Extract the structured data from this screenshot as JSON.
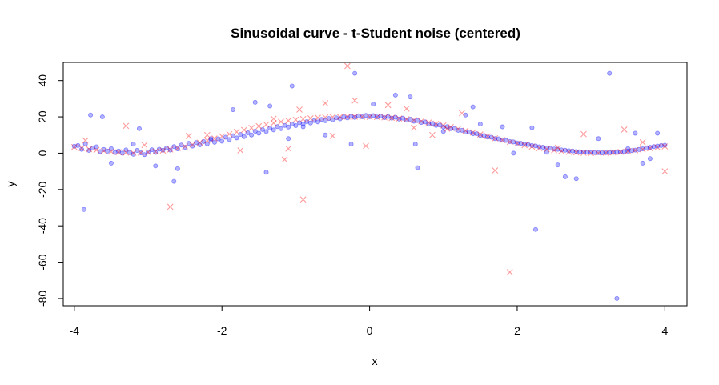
{
  "chart_data": {
    "type": "scatter",
    "title": "Sinusoidal curve - t-Student noise (centered)",
    "xlabel": "x",
    "ylabel": "y",
    "xlim": [
      -4.15,
      4.3
    ],
    "ylim": [
      -84,
      50
    ],
    "x_ticks": [
      -4,
      -2,
      0,
      2,
      4
    ],
    "x_tick_labels": [
      "-4",
      "-2",
      "0",
      "2",
      "4"
    ],
    "y_ticks": [
      -80,
      -60,
      -40,
      -20,
      0,
      20,
      40
    ],
    "y_tick_labels": [
      "-80",
      "-60",
      "-40",
      "-20",
      "0",
      "20",
      "40"
    ],
    "grid": false,
    "legend": "none",
    "colors": {
      "points": "#0000ff",
      "points_alpha": 0.3,
      "fit_markers": "#ff0000",
      "fit_markers_alpha": 0.4
    },
    "series": [
      {
        "marker": "circle",
        "color": "#0000ff",
        "points": [
          [
            -4.0,
            3.8
          ],
          [
            -3.95,
            4.2
          ],
          [
            -3.9,
            2.1
          ],
          [
            -3.85,
            5.0
          ],
          [
            -3.8,
            1.5
          ],
          [
            -3.75,
            2.8
          ],
          [
            -3.7,
            3.5
          ],
          [
            -3.65,
            0.9
          ],
          [
            -3.6,
            2.0
          ],
          [
            -3.55,
            1.1
          ],
          [
            -3.5,
            2.5
          ],
          [
            -3.45,
            0.4
          ],
          [
            -3.4,
            1.2
          ],
          [
            -3.35,
            0.0
          ],
          [
            -3.3,
            1.8
          ],
          [
            -3.25,
            0.3
          ],
          [
            -3.2,
            -0.6
          ],
          [
            -3.15,
            1.5
          ],
          [
            -3.1,
            0.2
          ],
          [
            -3.05,
            -0.8
          ],
          [
            -3.0,
            0.6
          ],
          [
            -2.95,
            1.9
          ],
          [
            -2.9,
            0.4
          ],
          [
            -2.85,
            2.2
          ],
          [
            -2.8,
            1.6
          ],
          [
            -2.75,
            2.9
          ],
          [
            -2.7,
            1.7
          ],
          [
            -2.65,
            3.6
          ],
          [
            -2.6,
            2.4
          ],
          [
            -2.55,
            4.5
          ],
          [
            -2.5,
            3.2
          ],
          [
            -2.45,
            5.4
          ],
          [
            -2.4,
            3.9
          ],
          [
            -2.35,
            5.8
          ],
          [
            -2.3,
            4.6
          ],
          [
            -2.25,
            6.4
          ],
          [
            -2.2,
            5.1
          ],
          [
            -2.15,
            7.2
          ],
          [
            -2.1,
            6.0
          ],
          [
            -2.05,
            7.9
          ],
          [
            -2.0,
            6.6
          ],
          [
            -1.95,
            8.8
          ],
          [
            -1.9,
            7.5
          ],
          [
            -1.85,
            9.6
          ],
          [
            -1.8,
            8.4
          ],
          [
            -1.75,
            10.3
          ],
          [
            -1.7,
            9.1
          ],
          [
            -1.65,
            11.2
          ],
          [
            -1.6,
            10.0
          ],
          [
            -1.55,
            12.1
          ],
          [
            -1.5,
            11.0
          ],
          [
            -1.45,
            13.0
          ],
          [
            -1.4,
            11.9
          ],
          [
            -1.35,
            13.8
          ],
          [
            -1.3,
            12.8
          ],
          [
            -1.25,
            14.6
          ],
          [
            -1.2,
            13.5
          ],
          [
            -1.15,
            15.3
          ],
          [
            -1.1,
            14.4
          ],
          [
            -1.05,
            16.0
          ],
          [
            -1.0,
            15.2
          ],
          [
            -0.95,
            16.8
          ],
          [
            -0.9,
            16.0
          ],
          [
            -0.85,
            17.4
          ],
          [
            -0.8,
            16.6
          ],
          [
            -0.75,
            18.0
          ],
          [
            -0.7,
            17.2
          ],
          [
            -0.65,
            18.6
          ],
          [
            -0.6,
            17.9
          ],
          [
            -0.55,
            19.1
          ],
          [
            -0.5,
            18.4
          ],
          [
            -0.45,
            19.5
          ],
          [
            -0.4,
            18.9
          ],
          [
            -0.35,
            20.0
          ],
          [
            -0.3,
            19.4
          ],
          [
            -0.25,
            20.3
          ],
          [
            -0.2,
            19.7
          ],
          [
            -0.15,
            20.6
          ],
          [
            -0.1,
            20.0
          ],
          [
            -0.05,
            20.8
          ],
          [
            0.0,
            20.1
          ],
          [
            0.05,
            20.7
          ],
          [
            0.1,
            19.9
          ],
          [
            0.15,
            20.5
          ],
          [
            0.2,
            19.6
          ],
          [
            0.25,
            20.2
          ],
          [
            0.3,
            19.3
          ],
          [
            0.35,
            19.8
          ],
          [
            0.4,
            18.8
          ],
          [
            0.45,
            19.3
          ],
          [
            0.5,
            18.2
          ],
          [
            0.55,
            18.7
          ],
          [
            0.6,
            17.6
          ],
          [
            0.65,
            18.0
          ],
          [
            0.7,
            16.9
          ],
          [
            0.75,
            17.2
          ],
          [
            0.8,
            16.1
          ],
          [
            0.85,
            16.4
          ],
          [
            0.9,
            15.3
          ],
          [
            0.95,
            15.5
          ],
          [
            1.0,
            14.4
          ],
          [
            1.05,
            14.6
          ],
          [
            1.1,
            13.5
          ],
          [
            1.15,
            13.6
          ],
          [
            1.2,
            12.6
          ],
          [
            1.25,
            12.6
          ],
          [
            1.3,
            11.6
          ],
          [
            1.35,
            11.6
          ],
          [
            1.4,
            10.7
          ],
          [
            1.45,
            10.7
          ],
          [
            1.5,
            9.8
          ],
          [
            1.55,
            9.7
          ],
          [
            1.6,
            8.9
          ],
          [
            1.65,
            8.8
          ],
          [
            1.7,
            8.0
          ],
          [
            1.75,
            7.9
          ],
          [
            1.8,
            7.2
          ],
          [
            1.85,
            7.0
          ],
          [
            1.9,
            6.4
          ],
          [
            1.95,
            6.2
          ],
          [
            2.0,
            5.6
          ],
          [
            2.05,
            5.4
          ],
          [
            2.1,
            4.9
          ],
          [
            2.15,
            4.7
          ],
          [
            2.2,
            4.2
          ],
          [
            2.25,
            4.0
          ],
          [
            2.3,
            3.5
          ],
          [
            2.35,
            3.3
          ],
          [
            2.4,
            2.9
          ],
          [
            2.45,
            2.7
          ],
          [
            2.5,
            2.3
          ],
          [
            2.55,
            2.1
          ],
          [
            2.6,
            1.8
          ],
          [
            2.65,
            1.6
          ],
          [
            2.7,
            1.3
          ],
          [
            2.75,
            1.2
          ],
          [
            2.8,
            0.9
          ],
          [
            2.85,
            0.8
          ],
          [
            2.9,
            0.6
          ],
          [
            2.95,
            0.5
          ],
          [
            3.0,
            0.4
          ],
          [
            3.05,
            0.3
          ],
          [
            3.1,
            0.3
          ],
          [
            3.15,
            0.2
          ],
          [
            3.2,
            0.3
          ],
          [
            3.25,
            0.3
          ],
          [
            3.3,
            0.4
          ],
          [
            3.35,
            0.5
          ],
          [
            3.4,
            0.7
          ],
          [
            3.45,
            0.9
          ],
          [
            3.5,
            1.1
          ],
          [
            3.55,
            1.4
          ],
          [
            3.6,
            1.7
          ],
          [
            3.65,
            2.0
          ],
          [
            3.7,
            2.4
          ],
          [
            3.75,
            2.8
          ],
          [
            3.8,
            3.2
          ],
          [
            3.85,
            3.6
          ],
          [
            3.9,
            3.9
          ],
          [
            3.95,
            4.2
          ],
          [
            4.0,
            4.4
          ],
          [
            -3.62,
            20.0
          ],
          [
            -3.87,
            -31.0
          ],
          [
            -3.78,
            21.0
          ],
          [
            -3.12,
            13.5
          ],
          [
            -2.65,
            -15.5
          ],
          [
            -2.9,
            -7.0
          ],
          [
            -2.6,
            -8.5
          ],
          [
            -1.85,
            24.0
          ],
          [
            -1.55,
            28.0
          ],
          [
            -1.35,
            26.0
          ],
          [
            -1.05,
            37.0
          ],
          [
            -1.1,
            8.0
          ],
          [
            -1.4,
            -10.5
          ],
          [
            -0.2,
            44.0
          ],
          [
            -0.6,
            10.0
          ],
          [
            -0.25,
            5.0
          ],
          [
            0.05,
            27.0
          ],
          [
            0.35,
            32.0
          ],
          [
            0.55,
            31.0
          ],
          [
            0.62,
            5.0
          ],
          [
            0.65,
            -8.0
          ],
          [
            1.4,
            25.5
          ],
          [
            1.3,
            21.0
          ],
          [
            1.5,
            16.0
          ],
          [
            1.8,
            14.5
          ],
          [
            2.2,
            14.0
          ],
          [
            2.25,
            -42.0
          ],
          [
            2.55,
            -6.5
          ],
          [
            2.65,
            -13.0
          ],
          [
            2.8,
            -14.0
          ],
          [
            3.1,
            8.0
          ],
          [
            3.25,
            44.0
          ],
          [
            3.35,
            -80.0
          ],
          [
            3.6,
            11.0
          ],
          [
            3.7,
            -5.5
          ],
          [
            3.8,
            -3.0
          ],
          [
            3.9,
            11.0
          ],
          [
            -3.5,
            -5.5
          ],
          [
            -2.15,
            8.0
          ],
          [
            -0.9,
            14.5
          ],
          [
            1.0,
            12.0
          ],
          [
            1.95,
            0.0
          ],
          [
            2.4,
            0.5
          ],
          [
            3.5,
            2.5
          ],
          [
            -3.2,
            5.0
          ]
        ]
      },
      {
        "marker": "cross",
        "color": "#ff0000",
        "points": [
          [
            -4.0,
            3.4
          ],
          [
            -3.9,
            2.8
          ],
          [
            -3.8,
            2.2
          ],
          [
            -3.7,
            1.7
          ],
          [
            -3.6,
            1.2
          ],
          [
            -3.5,
            0.8
          ],
          [
            -3.4,
            0.5
          ],
          [
            -3.3,
            0.3
          ],
          [
            -3.2,
            0.2
          ],
          [
            -3.1,
            0.3
          ],
          [
            -3.0,
            0.5
          ],
          [
            -2.9,
            0.9
          ],
          [
            -2.8,
            1.4
          ],
          [
            -2.7,
            2.0
          ],
          [
            -2.6,
            2.8
          ],
          [
            -2.5,
            3.7
          ],
          [
            -2.4,
            4.7
          ],
          [
            -2.3,
            5.8
          ],
          [
            -2.2,
            6.9
          ],
          [
            -2.1,
            8.1
          ],
          [
            -2.0,
            9.3
          ],
          [
            -1.9,
            10.5
          ],
          [
            -1.8,
            11.7
          ],
          [
            -1.7,
            12.8
          ],
          [
            -1.6,
            13.9
          ],
          [
            -1.5,
            14.9
          ],
          [
            -1.4,
            15.8
          ],
          [
            -1.3,
            16.6
          ],
          [
            -1.2,
            17.3
          ],
          [
            -1.1,
            17.9
          ],
          [
            -1.0,
            18.4
          ],
          [
            -0.9,
            18.8
          ],
          [
            -0.8,
            19.2
          ],
          [
            -0.7,
            19.5
          ],
          [
            -0.6,
            19.7
          ],
          [
            -0.5,
            19.9
          ],
          [
            -0.4,
            20.0
          ],
          [
            -0.3,
            20.1
          ],
          [
            -0.2,
            20.1
          ],
          [
            -0.1,
            20.1
          ],
          [
            0.0,
            20.0
          ],
          [
            0.1,
            19.9
          ],
          [
            0.2,
            19.7
          ],
          [
            0.3,
            19.4
          ],
          [
            0.4,
            19.1
          ],
          [
            0.5,
            18.7
          ],
          [
            0.6,
            18.2
          ],
          [
            0.7,
            17.6
          ],
          [
            0.8,
            16.9
          ],
          [
            0.9,
            16.1
          ],
          [
            1.0,
            15.3
          ],
          [
            1.1,
            14.4
          ],
          [
            1.2,
            13.4
          ],
          [
            1.3,
            12.4
          ],
          [
            1.4,
            11.4
          ],
          [
            1.5,
            10.3
          ],
          [
            1.6,
            9.3
          ],
          [
            1.7,
            8.2
          ],
          [
            1.8,
            7.2
          ],
          [
            1.9,
            6.2
          ],
          [
            2.0,
            5.3
          ],
          [
            2.1,
            4.4
          ],
          [
            2.2,
            3.6
          ],
          [
            2.3,
            2.8
          ],
          [
            2.4,
            2.2
          ],
          [
            2.5,
            1.6
          ],
          [
            2.6,
            1.1
          ],
          [
            2.7,
            0.7
          ],
          [
            2.8,
            0.4
          ],
          [
            2.9,
            0.2
          ],
          [
            3.0,
            0.1
          ],
          [
            3.1,
            0.1
          ],
          [
            3.2,
            0.2
          ],
          [
            3.3,
            0.4
          ],
          [
            3.4,
            0.7
          ],
          [
            3.5,
            1.1
          ],
          [
            3.6,
            1.6
          ],
          [
            3.7,
            2.1
          ],
          [
            3.8,
            2.7
          ],
          [
            3.9,
            3.2
          ],
          [
            4.0,
            3.7
          ],
          [
            -3.3,
            15.0
          ],
          [
            -2.7,
            -29.5
          ],
          [
            -2.45,
            9.5
          ],
          [
            -1.75,
            1.5
          ],
          [
            -1.3,
            19.0
          ],
          [
            -1.15,
            -3.5
          ],
          [
            -1.1,
            2.5
          ],
          [
            -0.9,
            -25.5
          ],
          [
            -0.95,
            24.0
          ],
          [
            -0.6,
            27.5
          ],
          [
            -0.5,
            9.5
          ],
          [
            -0.3,
            48.0
          ],
          [
            -0.2,
            29.0
          ],
          [
            -0.05,
            4.0
          ],
          [
            0.25,
            26.5
          ],
          [
            0.5,
            24.5
          ],
          [
            0.6,
            14.0
          ],
          [
            0.85,
            10.0
          ],
          [
            1.25,
            22.0
          ],
          [
            1.7,
            -9.5
          ],
          [
            1.9,
            -65.5
          ],
          [
            2.55,
            3.0
          ],
          [
            2.9,
            10.5
          ],
          [
            3.45,
            13.0
          ],
          [
            4.0,
            -10.0
          ],
          [
            -3.85,
            7.0
          ],
          [
            -3.05,
            4.5
          ],
          [
            -2.2,
            10.0
          ],
          [
            1.05,
            13.5
          ],
          [
            3.7,
            6.0
          ]
        ]
      }
    ]
  }
}
